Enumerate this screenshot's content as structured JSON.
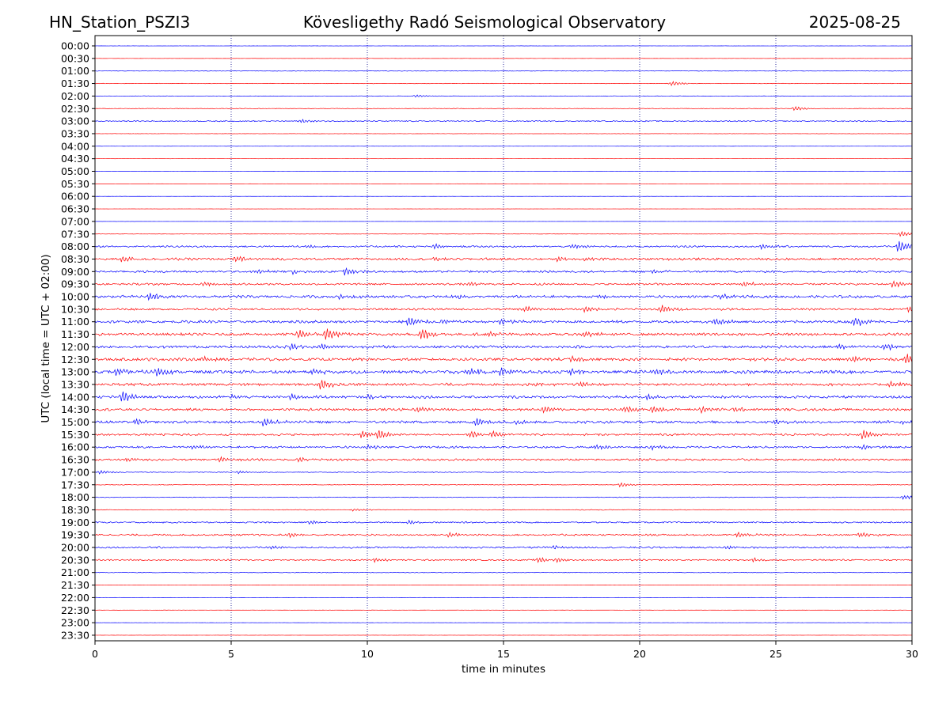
{
  "header": {
    "station": "HN_Station_PSZI3",
    "observatory": "Kövesligethy Radó Seismological Observatory",
    "date": "2025-08-25"
  },
  "chart_data": {
    "type": "line",
    "title": "Kövesligethy Radó Seismological Observatory",
    "xlabel": "time in minutes",
    "ylabel": "UTC (local time = UTC + 02:00)",
    "xlim": [
      0,
      30
    ],
    "xticks": [
      "0",
      "5",
      "10",
      "15",
      "20",
      "25",
      "30"
    ],
    "grid": "vertical dotted at each x tick",
    "colors": {
      "odd": "#0000ff",
      "even": "#ff0000",
      "grid": "#00008b"
    },
    "rows": [
      {
        "label": "00:00",
        "activity": 0.03,
        "color": "#0000ff",
        "events": []
      },
      {
        "label": "00:30",
        "activity": 0.03,
        "color": "#ff0000",
        "events": []
      },
      {
        "label": "01:00",
        "activity": 0.08,
        "color": "#0000ff",
        "events": []
      },
      {
        "label": "01:30",
        "activity": 0.08,
        "color": "#ff0000",
        "events": [
          {
            "t": 21.2,
            "a": 0.5
          }
        ]
      },
      {
        "label": "02:00",
        "activity": 0.08,
        "color": "#0000ff",
        "events": [
          {
            "t": 11.8,
            "a": 0.3
          }
        ]
      },
      {
        "label": "02:30",
        "activity": 0.1,
        "color": "#ff0000",
        "events": [
          {
            "t": 25.7,
            "a": 0.5
          }
        ]
      },
      {
        "label": "03:00",
        "activity": 0.2,
        "color": "#0000ff",
        "events": [
          {
            "t": 7.6,
            "a": 0.4
          }
        ]
      },
      {
        "label": "03:30",
        "activity": 0.05,
        "color": "#ff0000",
        "events": []
      },
      {
        "label": "04:00",
        "activity": 0.02,
        "color": "#0000ff",
        "events": []
      },
      {
        "label": "04:30",
        "activity": 0.02,
        "color": "#ff0000",
        "events": []
      },
      {
        "label": "05:00",
        "activity": 0.02,
        "color": "#0000ff",
        "events": []
      },
      {
        "label": "05:30",
        "activity": 0.02,
        "color": "#ff0000",
        "events": []
      },
      {
        "label": "06:00",
        "activity": 0.02,
        "color": "#0000ff",
        "events": []
      },
      {
        "label": "06:30",
        "activity": 0.02,
        "color": "#ff0000",
        "events": []
      },
      {
        "label": "07:00",
        "activity": 0.02,
        "color": "#0000ff",
        "events": []
      },
      {
        "label": "07:30",
        "activity": 0.05,
        "color": "#ff0000",
        "events": [
          {
            "t": 29.6,
            "a": 0.6
          }
        ]
      },
      {
        "label": "08:00",
        "activity": 0.3,
        "color": "#0000ff",
        "events": [
          {
            "t": 7.8,
            "a": 0.4
          },
          {
            "t": 12.5,
            "a": 0.5
          },
          {
            "t": 17.5,
            "a": 0.5
          },
          {
            "t": 24.5,
            "a": 0.6
          },
          {
            "t": 29.5,
            "a": 1.4
          }
        ]
      },
      {
        "label": "08:30",
        "activity": 0.4,
        "color": "#ff0000",
        "events": [
          {
            "t": 1.0,
            "a": 0.6
          },
          {
            "t": 5.2,
            "a": 0.6
          },
          {
            "t": 12.5,
            "a": 0.5
          },
          {
            "t": 17.0,
            "a": 0.5
          },
          {
            "t": 18.0,
            "a": 0.5
          }
        ]
      },
      {
        "label": "09:00",
        "activity": 0.35,
        "color": "#0000ff",
        "events": [
          {
            "t": 6.0,
            "a": 0.5
          },
          {
            "t": 7.3,
            "a": 0.5
          },
          {
            "t": 9.2,
            "a": 0.8
          },
          {
            "t": 20.5,
            "a": 0.4
          }
        ]
      },
      {
        "label": "09:30",
        "activity": 0.35,
        "color": "#ff0000",
        "events": [
          {
            "t": 4.0,
            "a": 0.4
          },
          {
            "t": 13.8,
            "a": 0.5
          },
          {
            "t": 23.8,
            "a": 0.6
          },
          {
            "t": 29.3,
            "a": 0.7
          }
        ]
      },
      {
        "label": "10:00",
        "activity": 0.45,
        "color": "#0000ff",
        "events": [
          {
            "t": 2.0,
            "a": 0.9
          },
          {
            "t": 9.0,
            "a": 0.6
          },
          {
            "t": 13.3,
            "a": 0.5
          },
          {
            "t": 18.5,
            "a": 0.5
          },
          {
            "t": 23.0,
            "a": 0.5
          }
        ]
      },
      {
        "label": "10:30",
        "activity": 0.35,
        "color": "#ff0000",
        "events": [
          {
            "t": 15.8,
            "a": 0.6
          },
          {
            "t": 18.0,
            "a": 0.7
          },
          {
            "t": 20.8,
            "a": 0.9
          },
          {
            "t": 29.9,
            "a": 0.8
          }
        ]
      },
      {
        "label": "11:00",
        "activity": 0.45,
        "color": "#0000ff",
        "events": [
          {
            "t": 11.5,
            "a": 1.0
          },
          {
            "t": 12.8,
            "a": 0.5
          },
          {
            "t": 14.9,
            "a": 0.6
          },
          {
            "t": 22.8,
            "a": 0.7
          },
          {
            "t": 27.9,
            "a": 1.2
          }
        ]
      },
      {
        "label": "11:30",
        "activity": 0.45,
        "color": "#ff0000",
        "events": [
          {
            "t": 7.5,
            "a": 0.9
          },
          {
            "t": 8.5,
            "a": 1.3
          },
          {
            "t": 12.0,
            "a": 1.3
          },
          {
            "t": 14.5,
            "a": 0.5
          },
          {
            "t": 18.0,
            "a": 0.5
          }
        ]
      },
      {
        "label": "12:00",
        "activity": 0.45,
        "color": "#0000ff",
        "events": [
          {
            "t": 7.2,
            "a": 0.7
          },
          {
            "t": 8.3,
            "a": 0.6
          },
          {
            "t": 27.3,
            "a": 0.6
          },
          {
            "t": 29.0,
            "a": 0.7
          }
        ]
      },
      {
        "label": "12:30",
        "activity": 0.5,
        "color": "#ff0000",
        "events": [
          {
            "t": 4.0,
            "a": 0.5
          },
          {
            "t": 17.5,
            "a": 0.5
          },
          {
            "t": 27.8,
            "a": 0.7
          },
          {
            "t": 29.8,
            "a": 1.3
          }
        ]
      },
      {
        "label": "13:00",
        "activity": 0.55,
        "color": "#0000ff",
        "events": [
          {
            "t": 0.8,
            "a": 0.7
          },
          {
            "t": 2.3,
            "a": 0.9
          },
          {
            "t": 8.0,
            "a": 0.6
          },
          {
            "t": 13.8,
            "a": 0.8
          },
          {
            "t": 14.9,
            "a": 1.0
          },
          {
            "t": 17.5,
            "a": 0.6
          },
          {
            "t": 20.6,
            "a": 0.7
          }
        ]
      },
      {
        "label": "13:30",
        "activity": 0.45,
        "color": "#ff0000",
        "events": [
          {
            "t": 8.3,
            "a": 1.2
          },
          {
            "t": 16.2,
            "a": 0.5
          },
          {
            "t": 17.8,
            "a": 0.6
          },
          {
            "t": 29.2,
            "a": 0.8
          }
        ]
      },
      {
        "label": "14:00",
        "activity": 0.45,
        "color": "#0000ff",
        "events": [
          {
            "t": 1.0,
            "a": 1.3
          },
          {
            "t": 5.0,
            "a": 0.4
          },
          {
            "t": 7.2,
            "a": 0.6
          },
          {
            "t": 10.0,
            "a": 0.4
          },
          {
            "t": 20.3,
            "a": 0.5
          }
        ]
      },
      {
        "label": "14:30",
        "activity": 0.4,
        "color": "#ff0000",
        "events": [
          {
            "t": 11.9,
            "a": 0.6
          },
          {
            "t": 16.5,
            "a": 0.6
          },
          {
            "t": 19.5,
            "a": 0.8
          },
          {
            "t": 20.5,
            "a": 0.7
          },
          {
            "t": 22.3,
            "a": 0.6
          },
          {
            "t": 23.5,
            "a": 0.6
          }
        ]
      },
      {
        "label": "15:00",
        "activity": 0.45,
        "color": "#0000ff",
        "events": [
          {
            "t": 1.5,
            "a": 0.6
          },
          {
            "t": 6.2,
            "a": 0.9
          },
          {
            "t": 14.0,
            "a": 0.9
          },
          {
            "t": 15.5,
            "a": 0.5
          },
          {
            "t": 25.0,
            "a": 0.4
          },
          {
            "t": 29.7,
            "a": 0.5
          }
        ]
      },
      {
        "label": "15:30",
        "activity": 0.35,
        "color": "#ff0000",
        "events": [
          {
            "t": 9.8,
            "a": 0.8
          },
          {
            "t": 10.4,
            "a": 1.0
          },
          {
            "t": 13.8,
            "a": 0.7
          },
          {
            "t": 14.6,
            "a": 0.6
          },
          {
            "t": 28.2,
            "a": 1.0
          }
        ]
      },
      {
        "label": "16:00",
        "activity": 0.35,
        "color": "#0000ff",
        "events": [
          {
            "t": 3.6,
            "a": 0.5
          },
          {
            "t": 10.0,
            "a": 0.4
          },
          {
            "t": 18.4,
            "a": 0.5
          },
          {
            "t": 20.5,
            "a": 0.5
          },
          {
            "t": 28.2,
            "a": 0.4
          }
        ]
      },
      {
        "label": "16:30",
        "activity": 0.35,
        "color": "#ff0000",
        "events": [
          {
            "t": 1.2,
            "a": 0.4
          },
          {
            "t": 4.6,
            "a": 0.6
          },
          {
            "t": 7.5,
            "a": 0.5
          }
        ]
      },
      {
        "label": "17:00",
        "activity": 0.15,
        "color": "#0000ff",
        "events": [
          {
            "t": 0.2,
            "a": 0.4
          },
          {
            "t": 5.3,
            "a": 0.3
          }
        ]
      },
      {
        "label": "17:30",
        "activity": 0.12,
        "color": "#ff0000",
        "events": [
          {
            "t": 19.3,
            "a": 0.5
          }
        ]
      },
      {
        "label": "18:00",
        "activity": 0.12,
        "color": "#0000ff",
        "events": [
          {
            "t": 29.7,
            "a": 0.5
          }
        ]
      },
      {
        "label": "18:30",
        "activity": 0.12,
        "color": "#ff0000",
        "events": [
          {
            "t": 9.5,
            "a": 0.3
          }
        ]
      },
      {
        "label": "19:00",
        "activity": 0.25,
        "color": "#0000ff",
        "events": [
          {
            "t": 7.9,
            "a": 0.4
          },
          {
            "t": 11.5,
            "a": 0.4
          }
        ]
      },
      {
        "label": "19:30",
        "activity": 0.3,
        "color": "#ff0000",
        "events": [
          {
            "t": 7.2,
            "a": 0.5
          },
          {
            "t": 13.0,
            "a": 0.5
          },
          {
            "t": 23.6,
            "a": 0.5
          },
          {
            "t": 28.1,
            "a": 0.6
          }
        ]
      },
      {
        "label": "20:00",
        "activity": 0.3,
        "color": "#0000ff",
        "events": [
          {
            "t": 6.5,
            "a": 0.4
          },
          {
            "t": 16.8,
            "a": 0.4
          },
          {
            "t": 23.2,
            "a": 0.4
          }
        ]
      },
      {
        "label": "20:30",
        "activity": 0.25,
        "color": "#ff0000",
        "events": [
          {
            "t": 10.3,
            "a": 0.5
          },
          {
            "t": 16.3,
            "a": 0.6
          },
          {
            "t": 17.0,
            "a": 0.4
          },
          {
            "t": 24.2,
            "a": 0.4
          }
        ]
      },
      {
        "label": "21:00",
        "activity": 0.1,
        "color": "#0000ff",
        "events": []
      },
      {
        "label": "21:30",
        "activity": 0.04,
        "color": "#ff0000",
        "events": []
      },
      {
        "label": "22:00",
        "activity": 0.04,
        "color": "#0000ff",
        "events": []
      },
      {
        "label": "22:30",
        "activity": 0.03,
        "color": "#ff0000",
        "events": []
      },
      {
        "label": "23:00",
        "activity": 0.03,
        "color": "#0000ff",
        "events": []
      },
      {
        "label": "23:30",
        "activity": 0.03,
        "color": "#ff0000",
        "events": []
      }
    ]
  }
}
